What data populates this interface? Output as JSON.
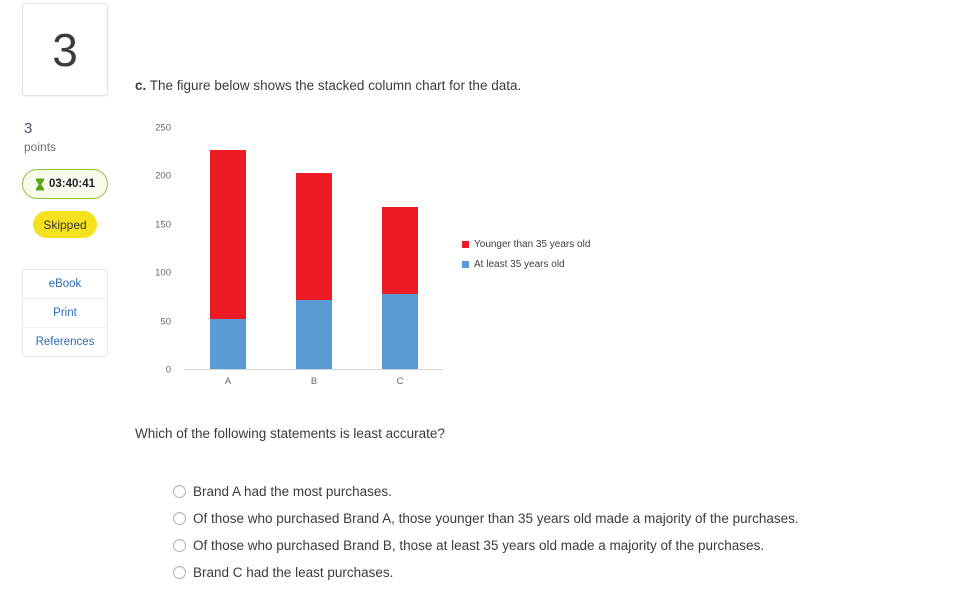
{
  "sidebar": {
    "question_number": "3",
    "points_value": "3",
    "points_label": "points",
    "timer": "03:40:41",
    "status_badge": "Skipped",
    "links": [
      "eBook",
      "Print",
      "References"
    ]
  },
  "main": {
    "prompt_prefix": "c.",
    "prompt_text": "The figure below shows the stacked column chart for the data.",
    "question": "Which of the following statements is least accurate?",
    "options": [
      "Brand A had the most purchases.",
      "Of those who purchased Brand A, those younger than 35 years old made a majority of the purchases.",
      "Of those who purchased Brand B, those at least 35 years old made a majority of the purchases.",
      "Brand C had the least purchases."
    ]
  },
  "chart_data": {
    "type": "bar",
    "stacked": true,
    "categories": [
      "A",
      "B",
      "C"
    ],
    "series": [
      {
        "name": "At least 35 years old",
        "color": "#5b9bd5",
        "values": [
          52,
          72,
          78
        ]
      },
      {
        "name": "Younger than 35 years old",
        "color": "#ed1b24",
        "values": [
          175,
          131,
          90
        ]
      }
    ],
    "totals": [
      227,
      203,
      168
    ],
    "ylim": [
      0,
      250
    ],
    "ytick_step": 50,
    "grid": false,
    "legend_position": "right",
    "legend_order": [
      "Younger than 35 years old",
      "At least 35 years old"
    ]
  },
  "colors": {
    "bar_red": "#ed1b24",
    "bar_blue": "#5b9bd5",
    "link_blue": "#2a6cb5",
    "timer_green": "#8cc63e",
    "skipped_yellow": "#f6e11e"
  }
}
